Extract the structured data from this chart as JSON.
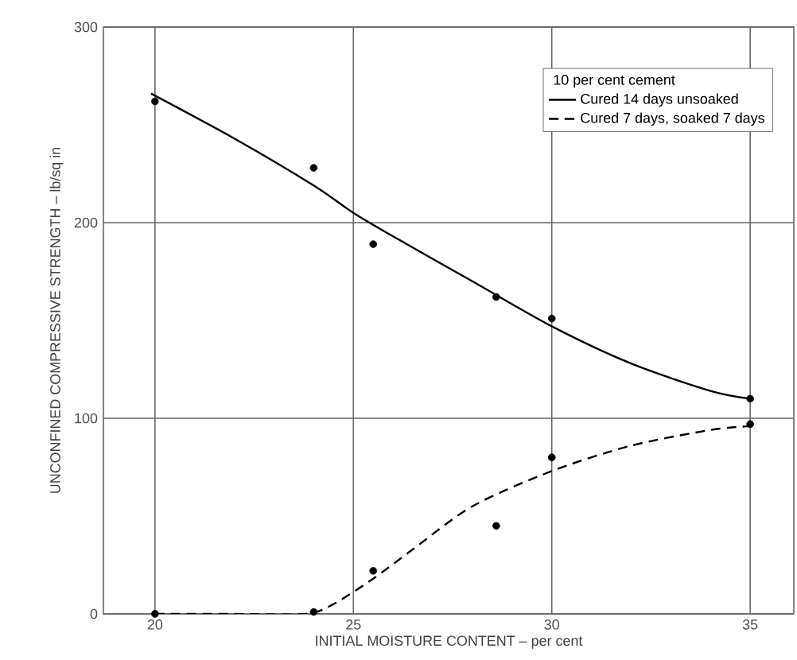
{
  "chart_data": {
    "type": "line",
    "xlabel": "INITIAL MOISTURE CONTENT – per cent",
    "ylabel": "UNCONFINED COMPRESSIVE STRENGTH – lb/sq in",
    "legend_title": "10 per cent cement",
    "xlim": [
      18.7,
      36.1
    ],
    "xticks": [
      20,
      25,
      30,
      35
    ],
    "ylim": [
      0,
      300
    ],
    "yticks": [
      0,
      100,
      200,
      300
    ],
    "grid": true,
    "legend": "top right",
    "series": [
      {
        "name": "Cured 14 days unsoaked",
        "color": "#000000",
        "line_style": "solid",
        "marker": "none",
        "x": [
          19.9,
          22,
          24,
          25,
          26,
          28,
          30,
          32,
          34,
          35
        ],
        "values": [
          266,
          243,
          219,
          205,
          193,
          170,
          147,
          128,
          114,
          110
        ]
      },
      {
        "name": "Cured 7 days, soaked 7 days",
        "color": "#000000",
        "line_style": "dashed",
        "marker": "none",
        "x": [
          20,
          22,
          23.8,
          24.5,
          25.5,
          26.5,
          28,
          30,
          32,
          34,
          35
        ],
        "values": [
          0,
          0,
          0,
          5,
          18,
          33,
          55,
          73,
          86,
          94,
          96
        ]
      },
      {
        "type": "scatter",
        "color": "#000000",
        "marker": "circle",
        "x": [
          20,
          24,
          25.5,
          28.6,
          30,
          35
        ],
        "values": [
          262,
          228,
          189,
          162,
          151,
          110
        ]
      },
      {
        "type": "scatter",
        "color": "#000000",
        "marker": "circle",
        "x": [
          20,
          24,
          25.5,
          28.6,
          30,
          35
        ],
        "values": [
          0,
          1,
          22,
          45,
          80,
          97
        ]
      }
    ]
  }
}
